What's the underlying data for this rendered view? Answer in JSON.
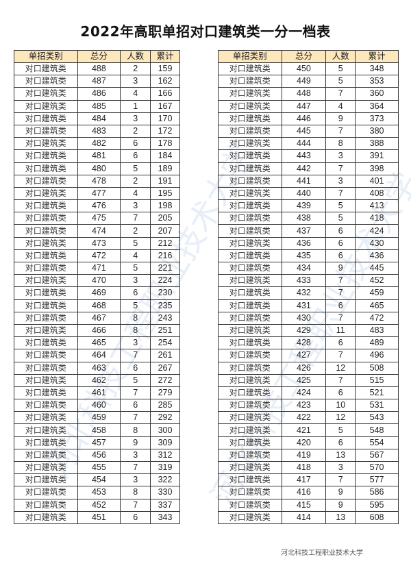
{
  "title": "2022年高职单招对口建筑类一分一档表",
  "headers": [
    "单招类别",
    "总分",
    "人数",
    "累计"
  ],
  "left_table": [
    [
      "对口建筑类",
      "488",
      "2",
      "159"
    ],
    [
      "对口建筑类",
      "487",
      "3",
      "162"
    ],
    [
      "对口建筑类",
      "486",
      "4",
      "166"
    ],
    [
      "对口建筑类",
      "485",
      "1",
      "167"
    ],
    [
      "对口建筑类",
      "484",
      "3",
      "170"
    ],
    [
      "对口建筑类",
      "483",
      "2",
      "172"
    ],
    [
      "对口建筑类",
      "482",
      "6",
      "178"
    ],
    [
      "对口建筑类",
      "481",
      "6",
      "184"
    ],
    [
      "对口建筑类",
      "480",
      "5",
      "189"
    ],
    [
      "对口建筑类",
      "478",
      "2",
      "191"
    ],
    [
      "对口建筑类",
      "477",
      "4",
      "195"
    ],
    [
      "对口建筑类",
      "476",
      "3",
      "198"
    ],
    [
      "对口建筑类",
      "475",
      "7",
      "205"
    ],
    [
      "对口建筑类",
      "474",
      "2",
      "207"
    ],
    [
      "对口建筑类",
      "473",
      "5",
      "212"
    ],
    [
      "对口建筑类",
      "472",
      "4",
      "216"
    ],
    [
      "对口建筑类",
      "471",
      "5",
      "221"
    ],
    [
      "对口建筑类",
      "470",
      "3",
      "224"
    ],
    [
      "对口建筑类",
      "469",
      "6",
      "230"
    ],
    [
      "对口建筑类",
      "468",
      "5",
      "235"
    ],
    [
      "对口建筑类",
      "467",
      "8",
      "243"
    ],
    [
      "对口建筑类",
      "466",
      "8",
      "251"
    ],
    [
      "对口建筑类",
      "465",
      "3",
      "254"
    ],
    [
      "对口建筑类",
      "464",
      "7",
      "261"
    ],
    [
      "对口建筑类",
      "463",
      "6",
      "267"
    ],
    [
      "对口建筑类",
      "462",
      "5",
      "272"
    ],
    [
      "对口建筑类",
      "461",
      "7",
      "279"
    ],
    [
      "对口建筑类",
      "460",
      "6",
      "285"
    ],
    [
      "对口建筑类",
      "459",
      "7",
      "292"
    ],
    [
      "对口建筑类",
      "458",
      "8",
      "300"
    ],
    [
      "对口建筑类",
      "457",
      "9",
      "309"
    ],
    [
      "对口建筑类",
      "456",
      "3",
      "312"
    ],
    [
      "对口建筑类",
      "455",
      "7",
      "319"
    ],
    [
      "对口建筑类",
      "454",
      "3",
      "322"
    ],
    [
      "对口建筑类",
      "453",
      "8",
      "330"
    ],
    [
      "对口建筑类",
      "452",
      "7",
      "337"
    ],
    [
      "对口建筑类",
      "451",
      "6",
      "343"
    ]
  ],
  "right_table": [
    [
      "对口建筑类",
      "450",
      "5",
      "348"
    ],
    [
      "对口建筑类",
      "449",
      "5",
      "353"
    ],
    [
      "对口建筑类",
      "448",
      "7",
      "360"
    ],
    [
      "对口建筑类",
      "447",
      "4",
      "364"
    ],
    [
      "对口建筑类",
      "446",
      "9",
      "373"
    ],
    [
      "对口建筑类",
      "445",
      "7",
      "380"
    ],
    [
      "对口建筑类",
      "444",
      "8",
      "388"
    ],
    [
      "对口建筑类",
      "443",
      "3",
      "391"
    ],
    [
      "对口建筑类",
      "442",
      "7",
      "398"
    ],
    [
      "对口建筑类",
      "441",
      "3",
      "401"
    ],
    [
      "对口建筑类",
      "440",
      "7",
      "408"
    ],
    [
      "对口建筑类",
      "439",
      "5",
      "413"
    ],
    [
      "对口建筑类",
      "438",
      "5",
      "418"
    ],
    [
      "对口建筑类",
      "437",
      "6",
      "424"
    ],
    [
      "对口建筑类",
      "436",
      "6",
      "430"
    ],
    [
      "对口建筑类",
      "435",
      "6",
      "436"
    ],
    [
      "对口建筑类",
      "434",
      "9",
      "445"
    ],
    [
      "对口建筑类",
      "433",
      "7",
      "452"
    ],
    [
      "对口建筑类",
      "432",
      "7",
      "459"
    ],
    [
      "对口建筑类",
      "431",
      "6",
      "465"
    ],
    [
      "对口建筑类",
      "430",
      "7",
      "472"
    ],
    [
      "对口建筑类",
      "429",
      "11",
      "483"
    ],
    [
      "对口建筑类",
      "428",
      "6",
      "489"
    ],
    [
      "对口建筑类",
      "427",
      "7",
      "496"
    ],
    [
      "对口建筑类",
      "426",
      "12",
      "508"
    ],
    [
      "对口建筑类",
      "425",
      "7",
      "515"
    ],
    [
      "对口建筑类",
      "424",
      "6",
      "521"
    ],
    [
      "对口建筑类",
      "423",
      "10",
      "531"
    ],
    [
      "对口建筑类",
      "422",
      "12",
      "543"
    ],
    [
      "对口建筑类",
      "421",
      "5",
      "548"
    ],
    [
      "对口建筑类",
      "420",
      "6",
      "554"
    ],
    [
      "对口建筑类",
      "419",
      "13",
      "567"
    ],
    [
      "对口建筑类",
      "418",
      "3",
      "570"
    ],
    [
      "对口建筑类",
      "417",
      "7",
      "577"
    ],
    [
      "对口建筑类",
      "416",
      "9",
      "586"
    ],
    [
      "对口建筑类",
      "415",
      "9",
      "595"
    ],
    [
      "对口建筑类",
      "414",
      "13",
      "608"
    ]
  ],
  "footer": "河北科技工程职业技术大学",
  "watermark": "河北科技工程职业技术大学",
  "colors": {
    "header_bg": "#fde7bd",
    "watermark": "#78a0d2"
  }
}
